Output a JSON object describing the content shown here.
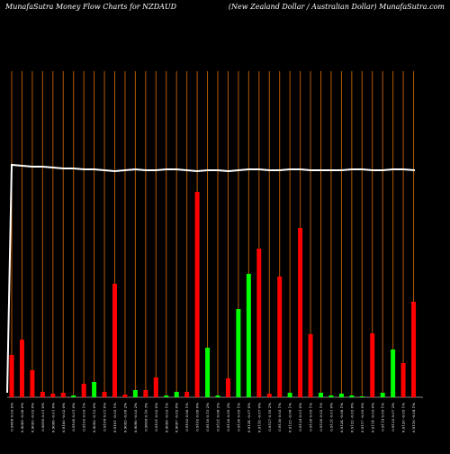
{
  "header": {
    "left": "MunafaSutra  Money Flow  Charts for NZDAUD",
    "right": "(New  Zealand Dollar / Australian  Dollar) MunafaSutra.com"
  },
  "chart_data": {
    "type": "bar",
    "title": "MunafaSutra  Money Flow  Charts for NZDAUD",
    "subtitle": "(New  Zealand Dollar / Australian  Dollar) MunafaSutra.com",
    "xlabel": "",
    "ylabel": "",
    "ylim": [
      0,
      100
    ],
    "grid": true,
    "legend": "none",
    "colors": {
      "up": "#00ff00",
      "down": "#ff0000",
      "line": "#ffffff",
      "grid": "#b35900",
      "background": "#000000"
    },
    "categories": [
      "0.9088 0.03 6%",
      "0.9089 -0.06 0%",
      "0.9093 -0.02 0%",
      "0.9095 0.01 0%",
      "0.9099 -0.01 0%",
      "0.9100 -0.02 0%",
      "0.9100 0.01 0%",
      "0.9102 0.03 1%",
      "0.9092 -0.12 0%",
      "0.9104 0.01 0%",
      "0.9101 -0.03 1%",
      "0.9093 -0.08 2%",
      "0.9090 -0.03 2%",
      "0.9099 0.10 3%",
      "0.9101 0.02 0%",
      "0.9099 -0.03 1%",
      "0.9097 -0.02 0%",
      "0.9102 0.06 1%",
      "0.9102 0.00 0%",
      "0.9116 0.15 2%",
      "0.9121 0.06 2%",
      "0.9126 0.05 2%",
      "0.9130 0.05 1%",
      "0.9124 -0.07 0%",
      "0.9118 -0.07 0%",
      "0.9127 0.10 2%",
      "0.9130 0.03 1%",
      "0.9123 -0.08 1%",
      "0.9124 0.01 0%",
      "0.9128 0.05 1%",
      "0.9130 0.02 1%",
      "0.9131 0.01 0%",
      "0.9124 -0.08 1%",
      "0.9122 -0.02 0%",
      "0.9117 -0.05 0%",
      "0.9114 -0.03 0%",
      "0.9119 0.05 1%",
      "0.9125 0.07 2%",
      "0.9120 -0.05 1%",
      "0.9116 -0.04 1%"
    ],
    "values": [
      22,
      17,
      15,
      10,
      7,
      6,
      3,
      6,
      7,
      6,
      8,
      13,
      6,
      50,
      8,
      6,
      3,
      10,
      6,
      80,
      24,
      4,
      10,
      38,
      54,
      60,
      5,
      47,
      8,
      71,
      21,
      8,
      5,
      5,
      5,
      5,
      18,
      6,
      20,
      28
    ],
    "bar_heights": [
      47,
      64,
      30,
      6,
      4,
      5,
      2,
      15,
      17,
      6,
      126,
      3,
      8,
      8,
      22,
      2,
      6,
      6,
      228,
      55,
      2,
      21,
      98,
      137,
      165,
      4,
      134,
      5,
      188,
      70,
      5,
      2,
      4,
      2,
      1,
      71,
      5,
      53,
      38,
      106
    ],
    "colors_per_bar": [
      "down",
      "down",
      "down",
      "down",
      "down",
      "down",
      "up",
      "down",
      "up",
      "down",
      "down",
      "down",
      "up",
      "down",
      "down",
      "up",
      "up",
      "down",
      "down",
      "up",
      "up",
      "down",
      "up",
      "up",
      "down",
      "down",
      "down",
      "up",
      "down",
      "down",
      "up",
      "up",
      "up",
      "up",
      "up",
      "down",
      "up",
      "up",
      "down",
      "down"
    ],
    "line": [
      100,
      99,
      98,
      98,
      97,
      96,
      96,
      95,
      95,
      94,
      93,
      94,
      95,
      94,
      94,
      95,
      95,
      94,
      93,
      94,
      94,
      93,
      94,
      95,
      95,
      94,
      94,
      95,
      95,
      94,
      94,
      94,
      94,
      95,
      95,
      94,
      94,
      95,
      95,
      94
    ]
  }
}
